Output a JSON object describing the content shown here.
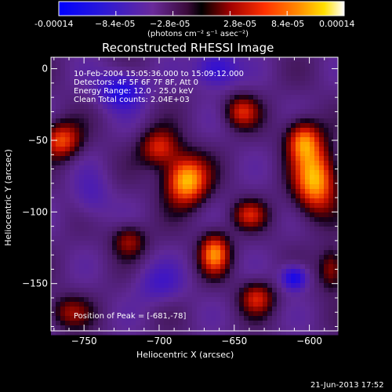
{
  "colorbar": {
    "tick_labels": [
      "-0.00014",
      "−8.4e-05",
      "−2.8e-05",
      "2.8e-05",
      "8.4e-05",
      "0.00014"
    ],
    "range": [
      -0.00014,
      0.00014
    ],
    "unit_label": "(photons cm⁻² s⁻¹ asec⁻²)"
  },
  "chart_data": {
    "type": "heatmap",
    "title": "Reconstructed RHESSI Image",
    "xlabel": "Heliocentric X (arcsec)",
    "ylabel": "Heliocentric Y (arcsec)",
    "xlim": [
      -772,
      -581
    ],
    "ylim": [
      -183,
      8
    ],
    "x_ticks": [
      -750,
      -700,
      -650,
      -600
    ],
    "y_ticks": [
      0,
      -50,
      -100,
      -150
    ],
    "colormap": "black-blue-purple-red-orange-yellow-white (rainbow/flux)",
    "blobs": [
      {
        "x": -682,
        "y": -78,
        "amp": 1.0,
        "sx": 10,
        "sy": 12
      },
      {
        "x": -596,
        "y": -78,
        "amp": 0.95,
        "sx": 10,
        "sy": 16
      },
      {
        "x": -604,
        "y": -50,
        "amp": 0.75,
        "sx": 8,
        "sy": 10
      },
      {
        "x": -663,
        "y": -129,
        "amp": 0.8,
        "sx": 7,
        "sy": 10
      },
      {
        "x": -700,
        "y": -55,
        "amp": 0.6,
        "sx": 9,
        "sy": 9
      },
      {
        "x": -765,
        "y": -50,
        "amp": 0.7,
        "sx": 9,
        "sy": 9
      },
      {
        "x": -635,
        "y": -160,
        "amp": 0.55,
        "sx": 8,
        "sy": 8
      },
      {
        "x": -640,
        "y": -102,
        "amp": 0.5,
        "sx": 8,
        "sy": 7
      },
      {
        "x": -720,
        "y": -120,
        "amp": 0.45,
        "sx": 8,
        "sy": 8
      },
      {
        "x": -585,
        "y": -140,
        "amp": 0.5,
        "sx": 6,
        "sy": 10
      },
      {
        "x": -645,
        "y": -30,
        "amp": 0.55,
        "sx": 8,
        "sy": 8
      },
      {
        "x": -760,
        "y": -170,
        "amp": 0.4,
        "sx": 10,
        "sy": 8
      },
      {
        "x": -725,
        "y": -15,
        "amp": -0.6,
        "sx": 11,
        "sy": 9
      },
      {
        "x": -662,
        "y": 0,
        "amp": -0.55,
        "sx": 10,
        "sy": 9
      },
      {
        "x": -610,
        "y": -146,
        "amp": -0.7,
        "sx": 6,
        "sy": 6
      },
      {
        "x": -700,
        "y": -150,
        "amp": -0.3,
        "sx": 12,
        "sy": 10
      },
      {
        "x": -745,
        "y": -90,
        "amp": -0.25,
        "sx": 9,
        "sy": 12
      }
    ],
    "peak_position": [
      -681,
      -78
    ]
  },
  "annotations": {
    "time_range": "10-Feb-2004 15:05:36.000 to 15:09:12.000",
    "detectors": "Detectors: 4F 5F 6F 7F 8F, Att 0",
    "energy": "Energy Range: 12.0 - 25.0 keV",
    "clean": "Clean     Total counts: 2.04E+03",
    "peak": "Position of Peak = [-681,-78]"
  },
  "footer": {
    "timestamp": "21-Jun-2013 17:52"
  }
}
